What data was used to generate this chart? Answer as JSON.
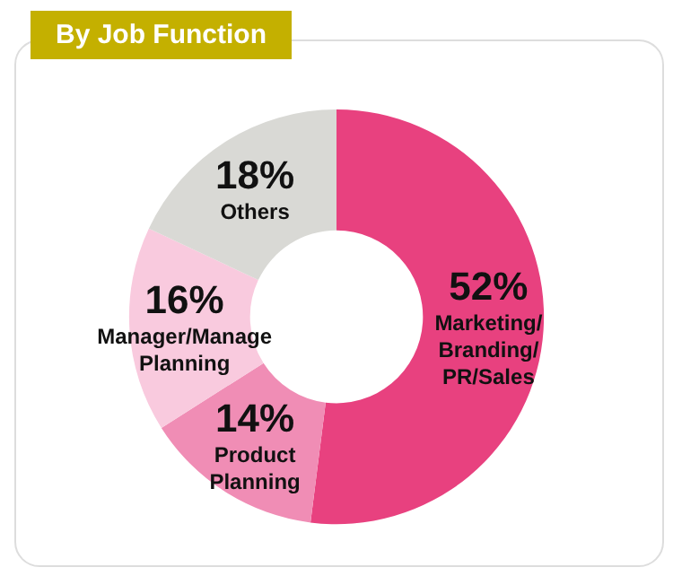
{
  "chart_data": {
    "type": "donut",
    "title": "By Job Function",
    "categories": [
      "Marketing/\nBranding/\nPR/Sales",
      "Product\nPlanning",
      "Manager/Manage\nPlanning",
      "Others"
    ],
    "values": [
      52,
      14,
      16,
      18
    ],
    "value_labels": [
      "52%",
      "14%",
      "16%",
      "18%"
    ],
    "colors": [
      "#e8417f",
      "#f08db5",
      "#f9cade",
      "#d9d9d5"
    ],
    "legend": false
  }
}
